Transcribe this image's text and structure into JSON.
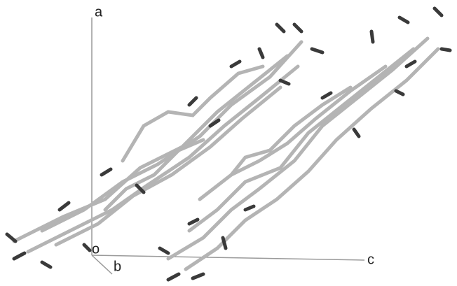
{
  "axes": {
    "a": "a",
    "b": "b",
    "c": "c",
    "origin": "o"
  }
}
